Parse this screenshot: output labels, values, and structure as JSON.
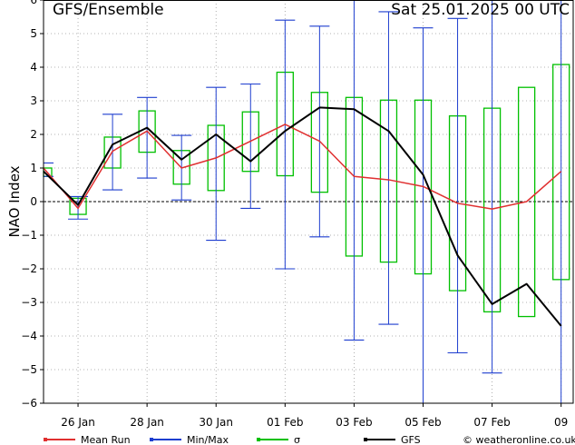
{
  "chart_data": {
    "type": "line",
    "title": "GFS/Ensemble",
    "run_label": "Sat 25.01.2025 00 UTC",
    "ylabel": "NAO Index",
    "ylim": [
      -6,
      6
    ],
    "yticks": [
      -6,
      -5,
      -4,
      -3,
      -2,
      -1,
      0,
      1,
      2,
      3,
      4,
      5,
      6
    ],
    "x_ticks": [
      {
        "label": "26 Jan",
        "x": 1
      },
      {
        "label": "28 Jan",
        "x": 3
      },
      {
        "label": "30 Jan",
        "x": 5
      },
      {
        "label": "01 Feb",
        "x": 7
      },
      {
        "label": "03 Feb",
        "x": 9
      },
      {
        "label": "05 Feb",
        "x": 11
      },
      {
        "label": "07 Feb",
        "x": 13
      },
      {
        "label": "09",
        "x": 15
      }
    ],
    "xlim": [
      0,
      15.35
    ],
    "grid": true,
    "legend_position": "bottom",
    "credit": "© weatheronline.co.uk",
    "colors": {
      "mean": "#e03030",
      "minmax": "#1e3ecf",
      "sigma": "#00c000",
      "gfs": "#000000"
    },
    "legend": [
      {
        "key": "mean",
        "label": "Mean Run"
      },
      {
        "key": "minmax",
        "label": "Min/Max"
      },
      {
        "key": "sigma",
        "label": "σ"
      },
      {
        "key": "gfs",
        "label": "GFS"
      }
    ],
    "x": [
      0,
      1,
      2,
      3,
      4,
      5,
      6,
      7,
      8,
      9,
      10,
      11,
      12,
      13,
      14,
      15
    ],
    "series": [
      {
        "key": "mean",
        "name": "Mean Run",
        "values": [
          1.0,
          -0.2,
          1.5,
          2.1,
          1.0,
          1.3,
          1.8,
          2.3,
          1.8,
          0.75,
          0.65,
          0.45,
          -0.05,
          -0.22,
          0.0,
          0.9
        ]
      },
      {
        "key": "gfs",
        "name": "GFS",
        "values": [
          0.9,
          -0.1,
          1.7,
          2.2,
          1.25,
          2.0,
          1.2,
          2.1,
          2.8,
          2.75,
          2.1,
          0.8,
          -1.6,
          -3.05,
          -2.45,
          -3.7
        ]
      }
    ],
    "minmax": [
      {
        "x": 0,
        "min": 0.75,
        "max": 1.15
      },
      {
        "x": 1,
        "min": -0.52,
        "max": 0.15
      },
      {
        "x": 2,
        "min": 0.35,
        "max": 2.6
      },
      {
        "x": 3,
        "min": 0.7,
        "max": 3.1
      },
      {
        "x": 4,
        "min": 0.05,
        "max": 1.97
      },
      {
        "x": 5,
        "min": -1.15,
        "max": 3.4
      },
      {
        "x": 6,
        "min": -0.2,
        "max": 3.5
      },
      {
        "x": 7,
        "min": -2.0,
        "max": 5.4
      },
      {
        "x": 8,
        "min": -1.05,
        "max": 5.22
      },
      {
        "x": 9,
        "min": -4.12,
        "max": 6.0
      },
      {
        "x": 10,
        "min": -3.65,
        "max": 5.65
      },
      {
        "x": 11,
        "min": -6.0,
        "max": 5.17
      },
      {
        "x": 12,
        "min": -4.5,
        "max": 5.45
      },
      {
        "x": 13,
        "min": -5.1,
        "max": 6.0
      },
      {
        "x": 15,
        "min": -6.0,
        "max": 6.0
      }
    ],
    "sigma": [
      {
        "x": 0,
        "low": 0.75,
        "high": 1.0
      },
      {
        "x": 1,
        "low": -0.38,
        "high": 0.1
      },
      {
        "x": 2,
        "low": 1.0,
        "high": 1.92
      },
      {
        "x": 3,
        "low": 1.47,
        "high": 2.7
      },
      {
        "x": 4,
        "low": 0.52,
        "high": 1.52
      },
      {
        "x": 5,
        "low": 0.33,
        "high": 2.27
      },
      {
        "x": 6,
        "low": 0.9,
        "high": 2.67
      },
      {
        "x": 7,
        "low": 0.77,
        "high": 3.85
      },
      {
        "x": 8,
        "low": 0.28,
        "high": 3.25
      },
      {
        "x": 9,
        "low": -1.62,
        "high": 3.1
      },
      {
        "x": 10,
        "low": -1.8,
        "high": 3.02
      },
      {
        "x": 11,
        "low": -2.15,
        "high": 3.02
      },
      {
        "x": 12,
        "low": -2.65,
        "high": 2.55
      },
      {
        "x": 13,
        "low": -3.28,
        "high": 2.78
      },
      {
        "x": 14,
        "low": -3.42,
        "high": 3.4
      },
      {
        "x": 15,
        "low": -2.32,
        "high": 4.08
      }
    ]
  }
}
